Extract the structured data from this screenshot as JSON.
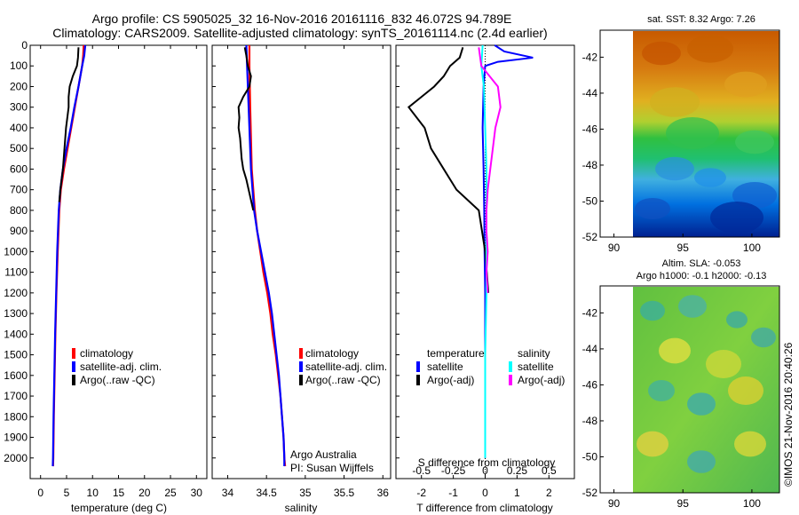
{
  "header": {
    "title_line1": "Argo profile: CS 5905025_32 16-Nov-2016 20161116_832 46.072S 94.789E",
    "title_line2": "Climatology: CARS2009. Satellite-adjusted climatology: synTS_20161114.nc (2.4d earlier)"
  },
  "colors": {
    "climatology": "#ff0000",
    "satellite": "#0000ff",
    "argo": "#000000",
    "sal_satellite": "#00ffff",
    "sal_argo": "#ff00ff"
  },
  "chart_data": [
    {
      "type": "line",
      "id": "temperature",
      "xlabel": "temperature (deg C)",
      "ylabel": "",
      "xlim": [
        -2,
        32
      ],
      "ylim": [
        2100,
        0
      ],
      "xticks": [
        0,
        5,
        10,
        15,
        20,
        25,
        30
      ],
      "yticks": [
        0,
        100,
        200,
        300,
        400,
        500,
        600,
        700,
        800,
        900,
        1000,
        1100,
        1200,
        1300,
        1400,
        1500,
        1600,
        1700,
        1800,
        1900,
        2000
      ],
      "legend": [
        "climatology",
        "satellite-adj. clim.",
        "Argo(..raw -QC)"
      ],
      "series": [
        {
          "name": "climatology",
          "depth": [
            0,
            50,
            100,
            200,
            300,
            400,
            500,
            600,
            700,
            800,
            1000,
            1200,
            1400,
            1600,
            1800,
            2000,
            2040
          ],
          "values": [
            8.3,
            8.2,
            8.0,
            7.3,
            6.6,
            5.9,
            5.2,
            4.5,
            3.9,
            3.6,
            3.3,
            3.05,
            2.85,
            2.7,
            2.55,
            2.45,
            2.4
          ]
        },
        {
          "name": "satellite-adj. clim.",
          "depth": [
            0,
            50,
            100,
            200,
            300,
            400,
            500,
            600,
            700,
            800,
            1000,
            1200,
            1400,
            1600,
            1800,
            2000,
            2040
          ],
          "values": [
            8.6,
            8.4,
            8.0,
            7.3,
            6.5,
            5.8,
            5.0,
            4.3,
            3.8,
            3.5,
            3.2,
            3.0,
            2.8,
            2.65,
            2.5,
            2.4,
            2.35
          ]
        },
        {
          "name": "Argo(..raw -QC)",
          "depth": [
            10,
            60,
            100,
            150,
            200,
            250,
            300,
            400,
            500,
            600,
            700,
            760
          ],
          "values": [
            7.3,
            7.2,
            7.0,
            6.2,
            5.6,
            5.4,
            5.4,
            4.9,
            4.6,
            4.3,
            3.8,
            3.6
          ]
        }
      ]
    },
    {
      "type": "line",
      "id": "salinity",
      "xlabel": "salinity",
      "ylabel": "",
      "xlim": [
        33.8,
        36.1
      ],
      "ylim": [
        2100,
        0
      ],
      "xticks": [
        34,
        34.5,
        35,
        35.5,
        36
      ],
      "legend": [
        "climatology",
        "satellite-adj. clim.",
        "Argo(..raw -QC)"
      ],
      "annotation": [
        "Argo Australia",
        "PI: Susan Wijffels"
      ],
      "series": [
        {
          "name": "climatology",
          "depth": [
            0,
            100,
            300,
            600,
            800,
            900,
            1000,
            1100,
            1200,
            1300,
            1400,
            1500,
            1600,
            1700,
            1800,
            1900,
            2000,
            2040
          ],
          "values": [
            34.28,
            34.28,
            34.29,
            34.31,
            34.35,
            34.38,
            34.42,
            34.46,
            34.51,
            34.55,
            34.58,
            34.62,
            34.65,
            34.68,
            34.7,
            34.72,
            34.73,
            34.74
          ]
        },
        {
          "name": "satellite-adj. clim.",
          "depth": [
            0,
            100,
            300,
            600,
            800,
            900,
            1000,
            1100,
            1200,
            1300,
            1400,
            1500,
            1600,
            1700,
            1800,
            1900,
            2000,
            2040
          ],
          "values": [
            34.24,
            34.25,
            34.27,
            34.3,
            34.34,
            34.38,
            34.43,
            34.48,
            34.53,
            34.57,
            34.6,
            34.63,
            34.66,
            34.68,
            34.7,
            34.72,
            34.73,
            34.73
          ]
        },
        {
          "name": "Argo(..raw -QC)",
          "depth": [
            10,
            50,
            100,
            150,
            200,
            250,
            300,
            350,
            400,
            450,
            500,
            550,
            600,
            650,
            700,
            750,
            800
          ],
          "values": [
            34.22,
            34.24,
            34.26,
            34.3,
            34.28,
            34.2,
            34.14,
            34.15,
            34.14,
            34.16,
            34.17,
            34.18,
            34.2,
            34.24,
            34.27,
            34.3,
            34.33
          ]
        }
      ]
    },
    {
      "type": "line",
      "id": "differences",
      "xlabel": "T difference from climatology",
      "xlabel_top": "S difference from climatology",
      "xlim": [
        -2.8,
        2.8
      ],
      "ylim": [
        2100,
        0
      ],
      "xticks": [
        -2,
        -1,
        0,
        1,
        2
      ],
      "xticks_s": [
        "-0.5",
        "-0.25",
        "0",
        "0.25",
        "0.5"
      ],
      "legend_temperature": {
        "title": "temperature",
        "items": [
          "satellite",
          "Argo(-adj)"
        ]
      },
      "legend_salinity": {
        "title": "salinity",
        "items": [
          "satellite",
          "Argo(-adj)"
        ]
      },
      "series": [
        {
          "name": "T satellite",
          "depth": [
            0,
            30,
            60,
            80,
            100,
            200,
            400,
            600,
            800,
            1000,
            1200,
            1500,
            1800,
            2000
          ],
          "values": [
            0.3,
            0.6,
            1.5,
            0.4,
            0.0,
            -0.05,
            -0.08,
            -0.05,
            -0.03,
            -0.02,
            0,
            0,
            0,
            0
          ]
        },
        {
          "name": "T Argo(-adj)",
          "depth": [
            10,
            60,
            100,
            150,
            200,
            250,
            300,
            400,
            500,
            600,
            700,
            800,
            900,
            1000,
            1100,
            1200
          ],
          "values": [
            -0.7,
            -0.8,
            -1.1,
            -1.3,
            -1.6,
            -2.0,
            -2.4,
            -1.9,
            -1.7,
            -1.3,
            -0.9,
            -0.2,
            -0.1,
            0,
            0.05,
            0.1
          ]
        },
        {
          "name": "S satellite",
          "depth": [
            0,
            100,
            200,
            400,
            600,
            800,
            1000,
            1200,
            1500,
            2000
          ],
          "values": [
            -0.02,
            -0.03,
            -0.01,
            0,
            0.01,
            0.01,
            0.01,
            0.01,
            0.0,
            0.0
          ]
        },
        {
          "name": "S Argo(-adj)",
          "depth": [
            10,
            100,
            200,
            300,
            400,
            500,
            600,
            700,
            800,
            900,
            1000,
            1100,
            1200
          ],
          "values": [
            -0.05,
            -0.03,
            0.1,
            0.12,
            0.08,
            0.06,
            0.04,
            0.02,
            0.01,
            0.01,
            0.02,
            0.01,
            0.02
          ]
        }
      ]
    },
    {
      "type": "heatmap",
      "id": "sst_map",
      "title": "sat. SST: 8.32 Argo: 7.26",
      "xlim": [
        89,
        102
      ],
      "ylim": [
        -52,
        -40.5
      ],
      "xticks": [
        90,
        95,
        100
      ],
      "yticks": [
        -42,
        -44,
        -46,
        -48,
        -50,
        -52
      ]
    },
    {
      "type": "heatmap",
      "id": "sla_map",
      "title": "Altim. SLA: -0.053",
      "subtitle": "Argo h1000: -0.1 h2000: -0.13",
      "xlim": [
        89,
        102
      ],
      "ylim": [
        -52,
        -40.5
      ],
      "xticks": [
        90,
        95,
        100
      ],
      "yticks": [
        -42,
        -44,
        -46,
        -48,
        -50,
        -52
      ]
    }
  ],
  "footer": {
    "credit": "©IMOS 21-Nov-2016 20:40:26"
  }
}
